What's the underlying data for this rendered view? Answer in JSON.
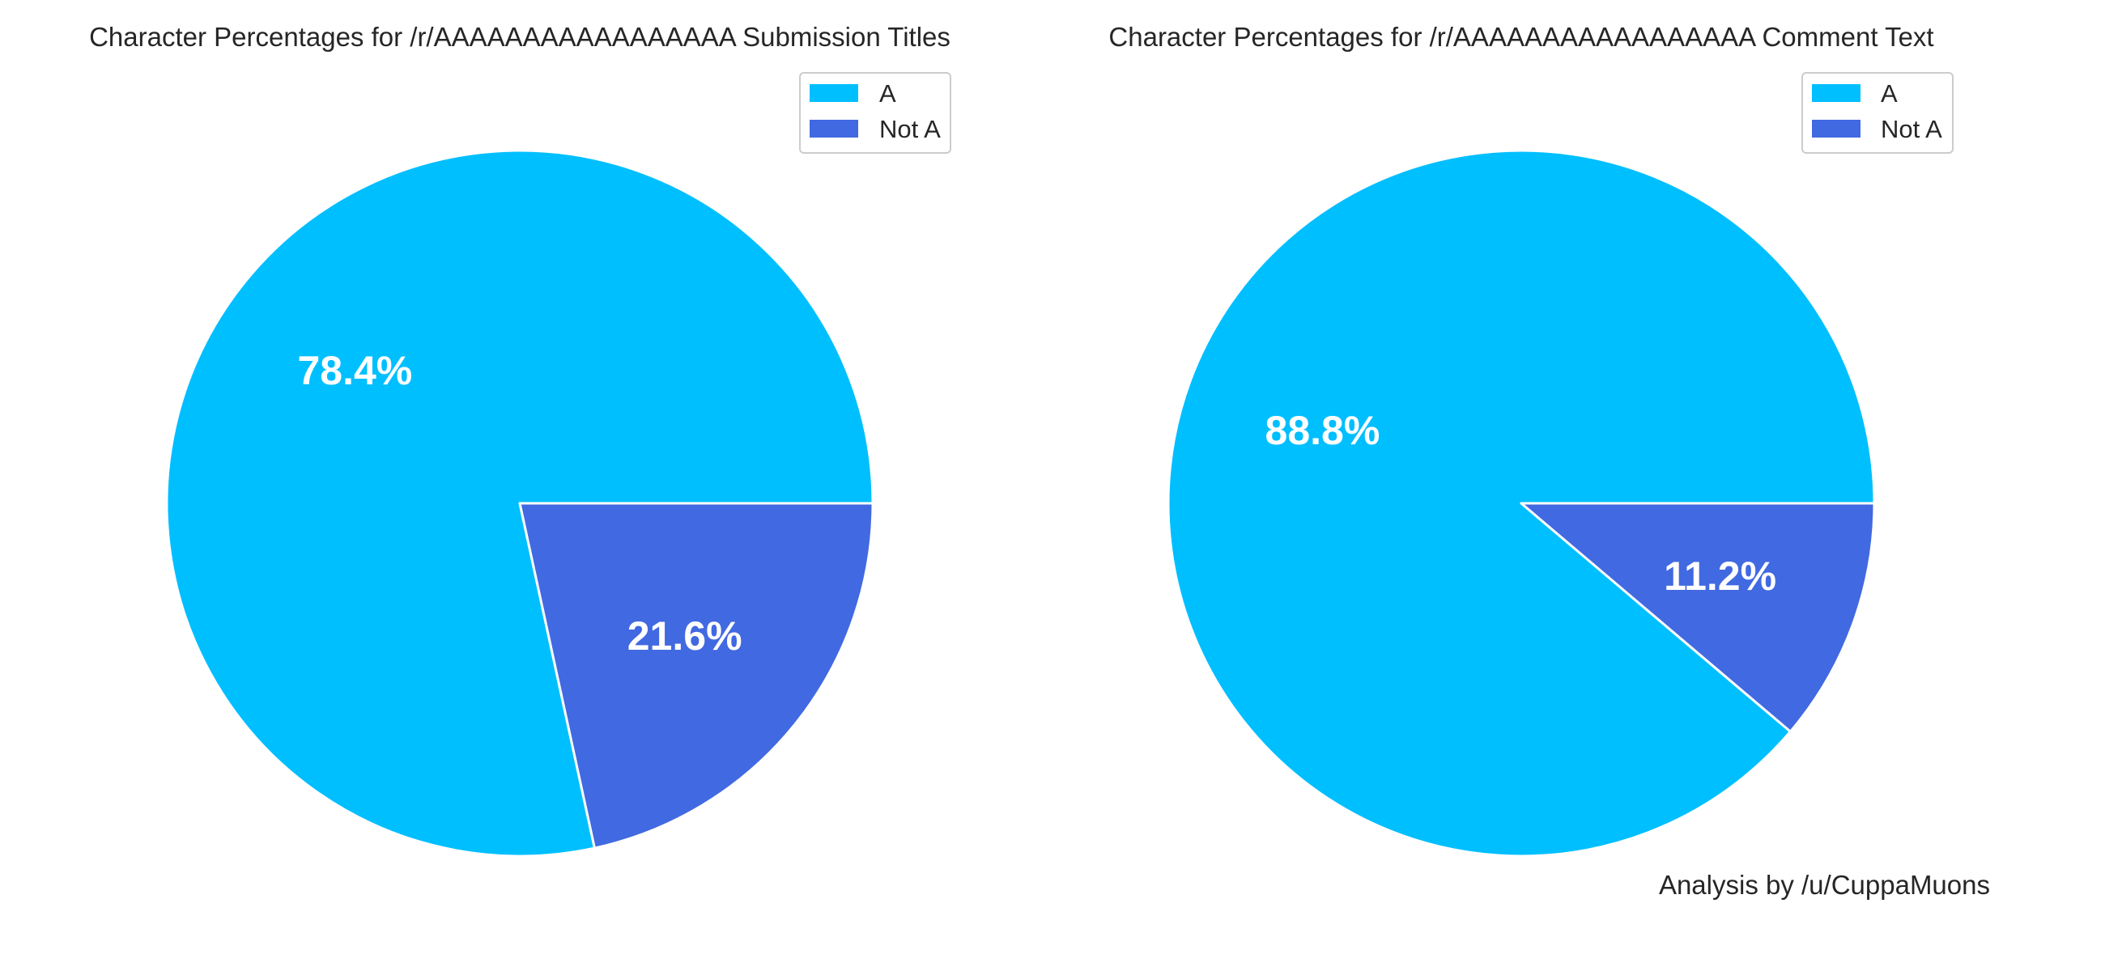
{
  "chart_data": [
    {
      "type": "pie",
      "title": "Character Percentages for /r/AAAAAAAAAAAAAAAAA Submission Titles",
      "categories": [
        "A",
        "Not A"
      ],
      "values": [
        78.4,
        21.6
      ],
      "value_labels": [
        "78.4%",
        "21.6%"
      ],
      "colors": [
        "#00bfff",
        "#4169e1"
      ],
      "legend": {
        "placement": "upper-right",
        "entries": [
          "A",
          "Not A"
        ]
      }
    },
    {
      "type": "pie",
      "title": "Character Percentages for /r/AAAAAAAAAAAAAAAAA Comment Text",
      "categories": [
        "A",
        "Not A"
      ],
      "values": [
        88.8,
        11.2
      ],
      "value_labels": [
        "88.8%",
        "11.2%"
      ],
      "colors": [
        "#00bfff",
        "#4169e1"
      ],
      "legend": {
        "placement": "upper-right",
        "entries": [
          "A",
          "Not A"
        ]
      }
    }
  ],
  "credit": "Analysis by /u/CuppaMuons"
}
